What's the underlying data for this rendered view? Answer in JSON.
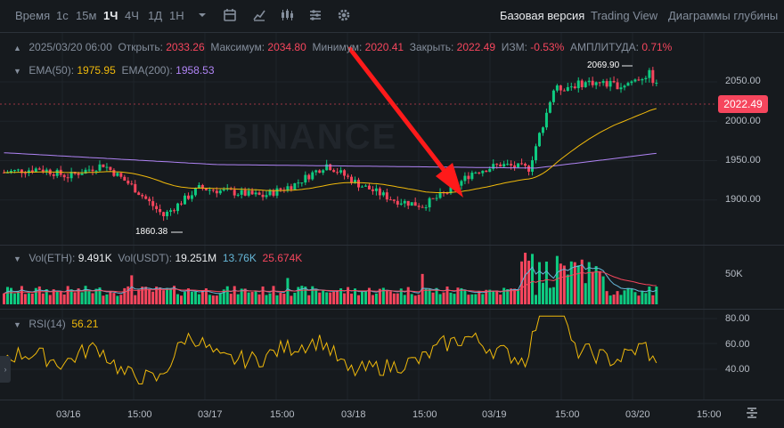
{
  "toolbar": {
    "time_label": "Время",
    "intervals": [
      "1с",
      "15м",
      "1Ч",
      "4Ч",
      "1Д",
      "1Н"
    ],
    "active_interval": "1Ч",
    "views": [
      "Базовая версия",
      "Trading View",
      "Диаграммы глубины"
    ],
    "active_view": "Базовая версия"
  },
  "ohlc": {
    "date": "2025/03/20 06:00",
    "open_label": "Открыть:",
    "open": "2033.26",
    "high_label": "Максимум:",
    "high": "2034.80",
    "low_label": "Минимум:",
    "low": "2020.41",
    "close_label": "Закрыть:",
    "close": "2022.49",
    "change_label": "ИЗМ:",
    "change": "-0.53%",
    "amp_label": "АМПЛИТУДА:",
    "amp": "0.71%"
  },
  "ema": {
    "ema50_label": "EMA(50):",
    "ema50": "1975.95",
    "ema200_label": "EMA(200):",
    "ema200": "1958.53"
  },
  "volume": {
    "eth_label": "Vol(ETH):",
    "eth": "9.491K",
    "usdt_label": "Vol(USDT):",
    "usdt": "19.251M",
    "ma1": "13.76K",
    "ma2": "25.674K"
  },
  "rsi": {
    "label": "RSI(14)",
    "value": "56.21"
  },
  "price_axis": [
    "2050.00",
    "2000.00",
    "1950.00",
    "1900.00"
  ],
  "current_price": "2022.49",
  "vol_axis": [
    "50K"
  ],
  "rsi_axis": [
    "80.00",
    "60.00",
    "40.00"
  ],
  "time_axis": [
    "03/16",
    "15:00",
    "03/17",
    "15:00",
    "03/18",
    "15:00",
    "03/19",
    "15:00",
    "03/20",
    "15:00"
  ],
  "high_marker": "2069.90",
  "low_marker": "1860.38",
  "watermark": "BINANCE",
  "colors": {
    "up": "#0ecb81",
    "down": "#f6465d",
    "ema50": "#f0b90b",
    "ema200": "#b084f5",
    "rsi": "#f0b90b",
    "arrow": "#ff1a1a"
  }
}
